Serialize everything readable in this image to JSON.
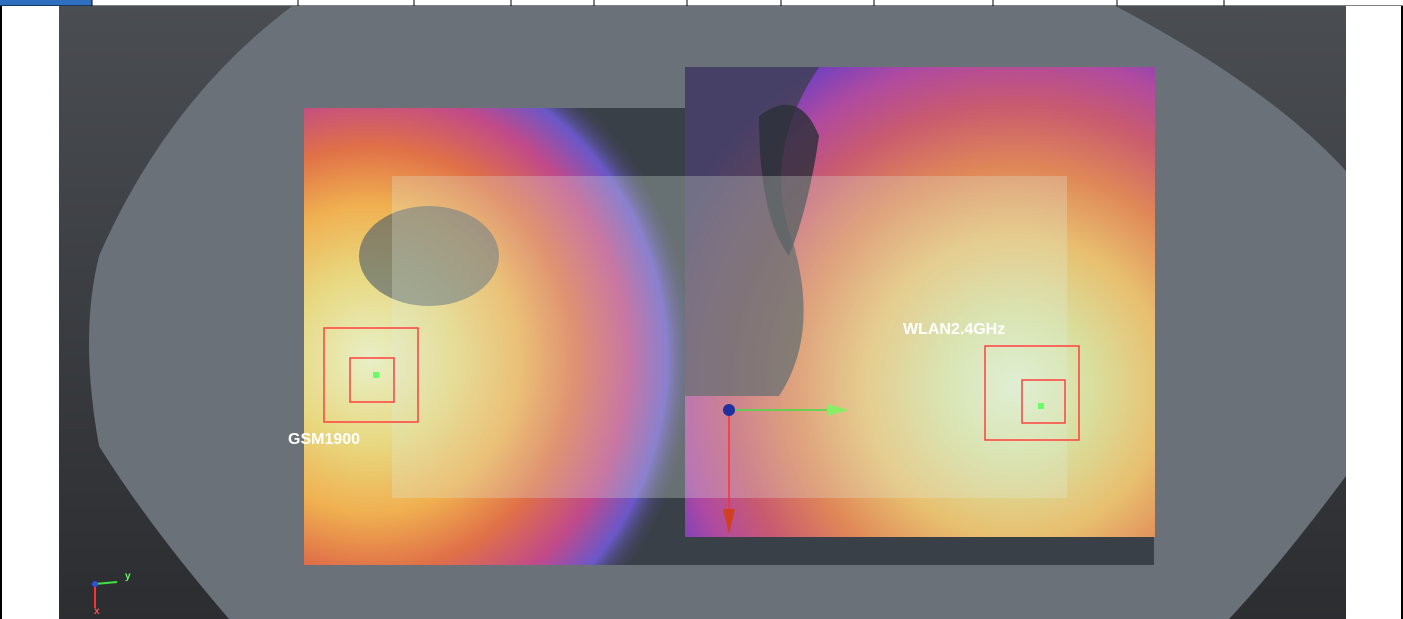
{
  "viewport": {
    "background_top": "#4a4d52",
    "background_bottom": "#2b2d30",
    "phantom_color": "#6b7178"
  },
  "antennas": [
    {
      "label": "GSM1900",
      "marker_color": "#ff4040",
      "feed_color": "#66ff66"
    },
    {
      "label": "WLAN2.4GHz",
      "marker_color": "#ff4040",
      "feed_color": "#66ff66"
    }
  ],
  "axes_gizmo": {
    "y_label": "y",
    "x_label": "x"
  },
  "colors": {
    "heat_high": "#e8f0c8",
    "heat_mid": "#f0b050",
    "heat_low": "#c04a8a",
    "heat_min": "#4060c0"
  }
}
